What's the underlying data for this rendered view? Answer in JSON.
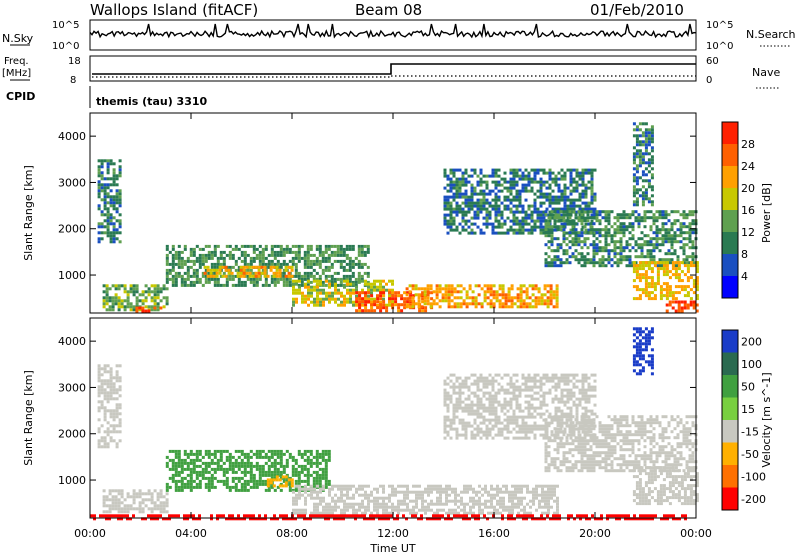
{
  "header": {
    "station": "Wallops Island (fitACF)",
    "beam": "Beam 08",
    "date": "01/Feb/2010"
  },
  "ancillary": {
    "nsky_label": "N.Sky",
    "nsky_ticks": [
      "10^5",
      "10^0"
    ],
    "nsearch_label": "N.Search",
    "nsearch_ticks": [
      "10^5",
      "10^0"
    ],
    "freq_label_1": "Freq.",
    "freq_label_2": "[MHz]",
    "freq_ticks": [
      "18",
      "8"
    ],
    "nave_label": "Nave",
    "nave_ticks": [
      "60",
      "0"
    ],
    "cpid_label": "CPID",
    "cpid_text": "themis (tau) 3310"
  },
  "colors": {
    "power_scale": [
      "#0000ff",
      "#1a4fc0",
      "#2a7a52",
      "#5fa050",
      "#c8c800",
      "#ffa000",
      "#ff6000",
      "#ff2000"
    ],
    "velocity_scale": [
      "#1a3cc8",
      "#2a6a50",
      "#40a040",
      "#78d040",
      "#c8c8c0",
      "#ffb000",
      "#ff7000",
      "#ff0000"
    ]
  },
  "chart_data": [
    {
      "type": "heatmap",
      "title": "Power",
      "ylabel": "Slant Range [km]",
      "xlabel": "",
      "x_ticks": [
        "00:00",
        "04:00",
        "08:00",
        "12:00",
        "16:00",
        "20:00",
        "00:00"
      ],
      "y_ticks": [
        "1000",
        "2000",
        "3000",
        "4000"
      ],
      "xlim_hours": [
        0,
        24
      ],
      "ylim_km": [
        180,
        4500
      ],
      "colorbar_label": "Power [dB]",
      "colorbar_ticks": [
        "4",
        "8",
        "12",
        "16",
        "20",
        "24",
        "28"
      ],
      "regions": [
        {
          "t0": 0.3,
          "t1": 1.2,
          "r0": 1700,
          "r1": 3500,
          "level": 10
        },
        {
          "t0": 0.5,
          "t1": 3.0,
          "r0": 250,
          "r1": 800,
          "level": 14
        },
        {
          "t0": 1.8,
          "t1": 2.8,
          "r0": 250,
          "r1": 320,
          "level": 28
        },
        {
          "t0": 3.0,
          "t1": 11.0,
          "r0": 800,
          "r1": 1650,
          "level": 12
        },
        {
          "t0": 4.5,
          "t1": 8.0,
          "r0": 950,
          "r1": 1200,
          "level": 21
        },
        {
          "t0": 8.0,
          "t1": 12.0,
          "r0": 350,
          "r1": 900,
          "level": 18
        },
        {
          "t0": 10.5,
          "t1": 13.5,
          "r0": 250,
          "r1": 650,
          "level": 27
        },
        {
          "t0": 12.5,
          "t1": 18.5,
          "r0": 300,
          "r1": 800,
          "level": 22
        },
        {
          "t0": 14.0,
          "t1": 20.0,
          "r0": 1900,
          "r1": 3300,
          "level": 9
        },
        {
          "t0": 18.0,
          "t1": 24.0,
          "r0": 1200,
          "r1": 2400,
          "level": 11
        },
        {
          "t0": 21.5,
          "t1": 24.0,
          "r0": 500,
          "r1": 1300,
          "level": 20
        },
        {
          "t0": 22.8,
          "t1": 24.0,
          "r0": 250,
          "r1": 450,
          "level": 28
        },
        {
          "t0": 21.5,
          "t1": 22.3,
          "r0": 2500,
          "r1": 4300,
          "level": 10
        }
      ]
    },
    {
      "type": "heatmap",
      "title": "Velocity",
      "ylabel": "Slant Range [km]",
      "xlabel": "Time UT",
      "x_ticks": [
        "00:00",
        "04:00",
        "08:00",
        "12:00",
        "16:00",
        "20:00",
        "00:00"
      ],
      "y_ticks": [
        "1000",
        "2000",
        "3000",
        "4000"
      ],
      "xlim_hours": [
        0,
        24
      ],
      "ylim_km": [
        180,
        4500
      ],
      "colorbar_label": "Velocity [m s^-1]",
      "colorbar_ticks": [
        "200",
        "100",
        "50",
        "15",
        "-15",
        "-50",
        "-100",
        "-200"
      ],
      "regions": [
        {
          "t0": 0.3,
          "t1": 1.2,
          "r0": 1700,
          "r1": 3500,
          "v": 0
        },
        {
          "t0": 0.5,
          "t1": 3.0,
          "r0": 300,
          "r1": 800,
          "v": 0
        },
        {
          "t0": 3.0,
          "t1": 9.5,
          "r0": 800,
          "r1": 1650,
          "v": 60
        },
        {
          "t0": 7.0,
          "t1": 8.0,
          "r0": 900,
          "r1": 1100,
          "v": -40
        },
        {
          "t0": 8.0,
          "t1": 18.5,
          "r0": 300,
          "r1": 900,
          "v": 0
        },
        {
          "t0": 14.0,
          "t1": 20.0,
          "r0": 1900,
          "r1": 3300,
          "v": 0
        },
        {
          "t0": 18.0,
          "t1": 24.0,
          "r0": 1200,
          "r1": 2400,
          "v": 0
        },
        {
          "t0": 21.5,
          "t1": 24.0,
          "r0": 500,
          "r1": 1300,
          "v": 0
        },
        {
          "t0": 21.5,
          "t1": 22.3,
          "r0": 3300,
          "r1": 4300,
          "v": 220
        },
        {
          "t0": 0.0,
          "t1": 24.0,
          "r0": 180,
          "r1": 260,
          "v": -150
        }
      ]
    }
  ]
}
